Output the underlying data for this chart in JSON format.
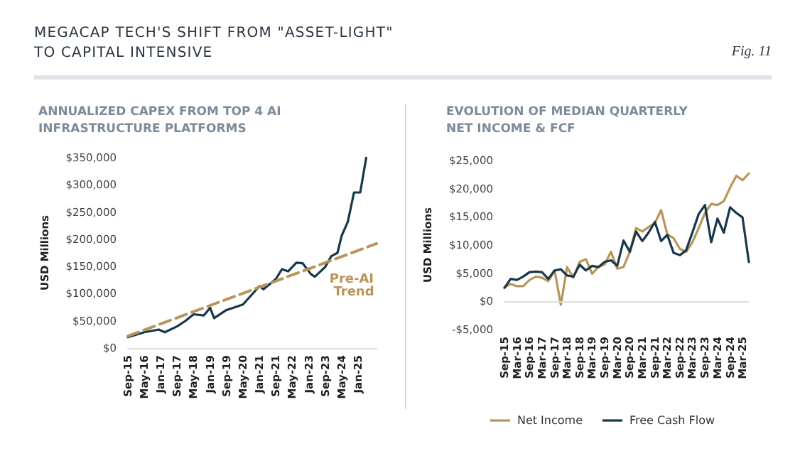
{
  "chart_data": [
    {
      "type": "line",
      "title": "ANNUALIZED CAPEX FROM TOP 4 AI\nINFRASTRUCTURE PLATFORMS",
      "ylabel": "USD Millions",
      "annotations": [
        "MEGACAP TECH'S SHIFT FROM \"ASSET-LIGHT\"\nTO CAPITAL INTENSIVE",
        "Fig. 11"
      ],
      "series": [
        {
          "color": "#17374a",
          "x": [
            "2015-09",
            "2016-05",
            "2016-12",
            "2017-03",
            "2017-09",
            "2018-01",
            "2018-05",
            "2018-10",
            "2019-01",
            "2019-03",
            "2019-09",
            "2020-05",
            "2021-01",
            "2021-03",
            "2021-09",
            "2021-12",
            "2022-03",
            "2022-07",
            "2022-10",
            "2023-02",
            "2023-04",
            "2023-09",
            "2023-12",
            "2024-03",
            "2024-05",
            "2024-08",
            "2024-11",
            "2025-02",
            "2025-05"
          ],
          "values": [
            20000,
            29000,
            34000,
            29000,
            40000,
            50000,
            62000,
            60000,
            74000,
            55000,
            70000,
            80000,
            114000,
            108000,
            127000,
            145000,
            141000,
            157000,
            156000,
            136000,
            131000,
            149000,
            169000,
            175000,
            206000,
            232000,
            286000,
            286000,
            350000
          ]
        },
        {
          "name": "Pre-AI Trend",
          "color": "#b8955a",
          "line_style": "dashed",
          "x": [
            "2015-09",
            "2025-10"
          ],
          "values": [
            22000,
            192000
          ]
        }
      ],
      "xlim": [
        "2015-09",
        "2025-10"
      ],
      "xticks": [
        {
          "value": "2015-09",
          "label": "Sep-15"
        },
        {
          "value": "2016-05",
          "label": "May-16"
        },
        {
          "value": "2017-01",
          "label": "Jan-17"
        },
        {
          "value": "2017-09",
          "label": "Sep-17"
        },
        {
          "value": "2018-05",
          "label": "May-18"
        },
        {
          "value": "2019-01",
          "label": "Jan-19"
        },
        {
          "value": "2019-09",
          "label": "Sep-19"
        },
        {
          "value": "2020-05",
          "label": "May-20"
        },
        {
          "value": "2021-01",
          "label": "Jan-21"
        },
        {
          "value": "2021-09",
          "label": "Sep-21"
        },
        {
          "value": "2022-05",
          "label": "May-22"
        },
        {
          "value": "2023-01",
          "label": "Jan-23"
        },
        {
          "value": "2023-09",
          "label": "Sep-23"
        },
        {
          "value": "2024-05",
          "label": "May-24"
        },
        {
          "value": "2025-01",
          "label": "Jan-25"
        }
      ],
      "ylim": [
        0,
        350000
      ],
      "yticks": [
        {
          "value": 0,
          "label": "$0"
        },
        {
          "value": 50000,
          "label": "$50,000"
        },
        {
          "value": 100000,
          "label": "$100,000"
        },
        {
          "value": 150000,
          "label": "$150,000"
        },
        {
          "value": 200000,
          "label": "$200,000"
        },
        {
          "value": 250000,
          "label": "$250,000"
        },
        {
          "value": 300000,
          "label": "$300,000"
        },
        {
          "value": 350000,
          "label": "$350,000"
        }
      ],
      "grid": false,
      "legend": false,
      "marker": "none"
    },
    {
      "type": "line",
      "title": "EVOLUTION OF MEDIAN QUARTERLY\nNET INCOME & FCF",
      "ylabel": "USD Millions",
      "x": [
        "2015-09",
        "2015-12",
        "2016-03",
        "2016-06",
        "2016-09",
        "2016-12",
        "2017-03",
        "2017-06",
        "2017-09",
        "2017-12",
        "2018-03",
        "2018-06",
        "2018-09",
        "2018-12",
        "2019-03",
        "2019-06",
        "2019-09",
        "2019-12",
        "2020-03",
        "2020-06",
        "2020-09",
        "2020-12",
        "2021-03",
        "2021-06",
        "2021-09",
        "2021-12",
        "2022-03",
        "2022-06",
        "2022-09",
        "2022-12",
        "2023-03",
        "2023-06",
        "2023-09",
        "2023-12",
        "2024-03",
        "2024-06",
        "2024-09",
        "2024-12",
        "2025-03",
        "2025-06"
      ],
      "series": [
        {
          "name": "Net Income",
          "color": "#b8955a",
          "values": [
            2500,
            3100,
            2700,
            2700,
            3800,
            4400,
            4200,
            3600,
            5500,
            -600,
            6100,
            4200,
            7000,
            7500,
            4900,
            6100,
            6600,
            8800,
            5800,
            6100,
            8800,
            13000,
            12400,
            13200,
            13900,
            16200,
            11900,
            11200,
            9300,
            8800,
            10500,
            13000,
            15700,
            17300,
            17100,
            17800,
            20200,
            22300,
            21500,
            22700
          ]
        },
        {
          "name": "Free Cash Flow",
          "color": "#17374a",
          "values": [
            2400,
            4000,
            3800,
            4400,
            5200,
            5300,
            5200,
            4000,
            5500,
            5700,
            4600,
            4400,
            6500,
            5500,
            6300,
            6100,
            7000,
            7300,
            6300,
            10800,
            8800,
            12400,
            10700,
            12200,
            14100,
            10700,
            11800,
            8600,
            8200,
            9100,
            12200,
            15500,
            17100,
            10500,
            14700,
            12200,
            16700,
            15700,
            14900,
            7000
          ]
        }
      ],
      "xlim": [
        "2015-09",
        "2025-06"
      ],
      "xticks": [
        {
          "value": "2015-09",
          "label": "Sep-15"
        },
        {
          "value": "2016-03",
          "label": "Mar-16"
        },
        {
          "value": "2016-09",
          "label": "Sep-16"
        },
        {
          "value": "2017-03",
          "label": "Mar-17"
        },
        {
          "value": "2017-09",
          "label": "Sep-17"
        },
        {
          "value": "2018-03",
          "label": "Mar-18"
        },
        {
          "value": "2018-09",
          "label": "Sep-18"
        },
        {
          "value": "2019-03",
          "label": "Mar-19"
        },
        {
          "value": "2019-09",
          "label": "Sep-19"
        },
        {
          "value": "2020-03",
          "label": "Mar-20"
        },
        {
          "value": "2020-09",
          "label": "Sep-20"
        },
        {
          "value": "2021-03",
          "label": "Mar-21"
        },
        {
          "value": "2021-09",
          "label": "Sep-21"
        },
        {
          "value": "2022-03",
          "label": "Mar-22"
        },
        {
          "value": "2022-09",
          "label": "Sep-22"
        },
        {
          "value": "2023-03",
          "label": "Mar-23"
        },
        {
          "value": "2023-09",
          "label": "Sep-23"
        },
        {
          "value": "2024-03",
          "label": "Mar-24"
        },
        {
          "value": "2024-09",
          "label": "Sep-24"
        },
        {
          "value": "2025-03",
          "label": "Mar-25"
        }
      ],
      "ylim": [
        -5000,
        25000
      ],
      "yticks": [
        {
          "value": -5000,
          "label": "-$5,000"
        },
        {
          "value": 0,
          "label": "$0"
        },
        {
          "value": 5000,
          "label": "$5,000"
        },
        {
          "value": 10000,
          "label": "$10,000"
        },
        {
          "value": 15000,
          "label": "$15,000"
        },
        {
          "value": 20000,
          "label": "$20,000"
        },
        {
          "value": 25000,
          "label": "$25,000"
        }
      ],
      "ref_lines": [
        {
          "axis": "y",
          "value": 0,
          "color": "#dddddd"
        }
      ],
      "grid": false,
      "legend": "bottom",
      "marker": "none"
    }
  ]
}
